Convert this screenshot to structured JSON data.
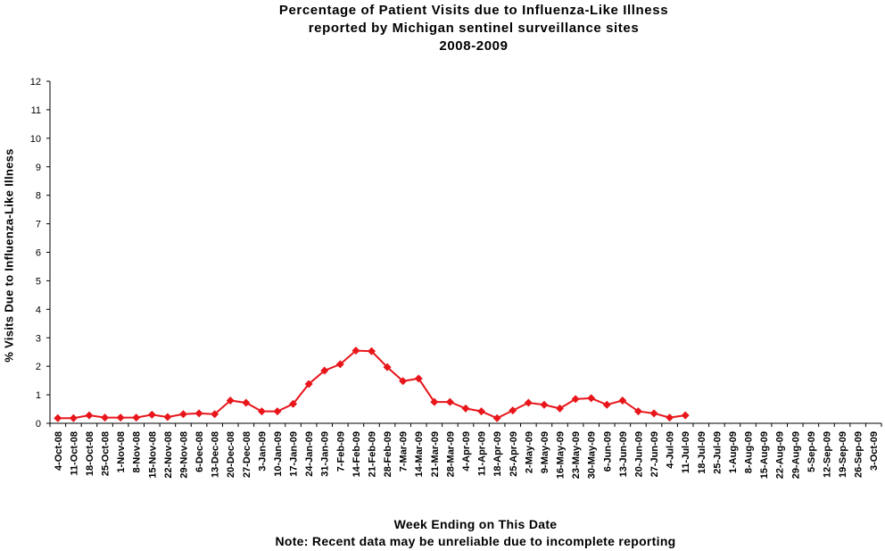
{
  "chart_data": {
    "type": "line",
    "title_lines": [
      "Percentage of Patient Visits due to Influenza-Like Illness",
      "reported by Michigan sentinel surveillance sites",
      "2008-2009"
    ],
    "xlabel": "Week Ending on This Date",
    "note": "Note: Recent data may be unreliable due to incomplete reporting",
    "ylabel": "% Visits Due to Influenza-Like Illness",
    "ylim": [
      0,
      12
    ],
    "yticks": [
      "0",
      "1",
      "2",
      "3",
      "4",
      "5",
      "6",
      "7",
      "8",
      "9",
      "10",
      "11",
      "12"
    ],
    "grid": false,
    "legend": "none",
    "series_color": "#e8161b",
    "categories": [
      "4-Oct-08",
      "11-Oct-08",
      "18-Oct-08",
      "25-Oct-08",
      "1-Nov-08",
      "8-Nov-08",
      "15-Nov-08",
      "22-Nov-08",
      "29-Nov-08",
      "6-Dec-08",
      "13-Dec-08",
      "20-Dec-08",
      "27-Dec-08",
      "3-Jan-09",
      "10-Jan-09",
      "17-Jan-09",
      "24-Jan-09",
      "31-Jan-09",
      "7-Feb-09",
      "14-Feb-09",
      "21-Feb-09",
      "28-Feb-09",
      "7-Mar-09",
      "14-Mar-09",
      "21-Mar-09",
      "28-Mar-09",
      "4-Apr-09",
      "11-Apr-09",
      "18-Apr-09",
      "25-Apr-09",
      "2-May-09",
      "9-May-09",
      "16-May-09",
      "23-May-09",
      "30-May-09",
      "6-Jun-09",
      "13-Jun-09",
      "20-Jun-09",
      "27-Jun-09",
      "4-Jul-09",
      "11-Jul-09",
      "18-Jul-09",
      "25-Jul-09",
      "1-Aug-09",
      "8-Aug-09",
      "15-Aug-09",
      "22-Aug-09",
      "29-Aug-09",
      "5-Sep-09",
      "12-Sep-09",
      "19-Sep-09",
      "26-Sep-09",
      "3-Oct-09"
    ],
    "series": [
      {
        "values": [
          0.18,
          0.18,
          0.28,
          0.2,
          0.2,
          0.2,
          0.3,
          0.22,
          0.32,
          0.35,
          0.32,
          0.8,
          0.72,
          0.42,
          0.42,
          0.68,
          1.38,
          1.85,
          2.07,
          2.55,
          2.53,
          1.97,
          1.48,
          1.57,
          0.75,
          0.75,
          0.52,
          0.42,
          0.18,
          0.45,
          0.72,
          0.65,
          0.52,
          0.85,
          0.88,
          0.65,
          0.8,
          0.42,
          0.35,
          0.2,
          0.28,
          null,
          null,
          null,
          null,
          null,
          null,
          null,
          null,
          null,
          null,
          null,
          null
        ]
      }
    ]
  }
}
